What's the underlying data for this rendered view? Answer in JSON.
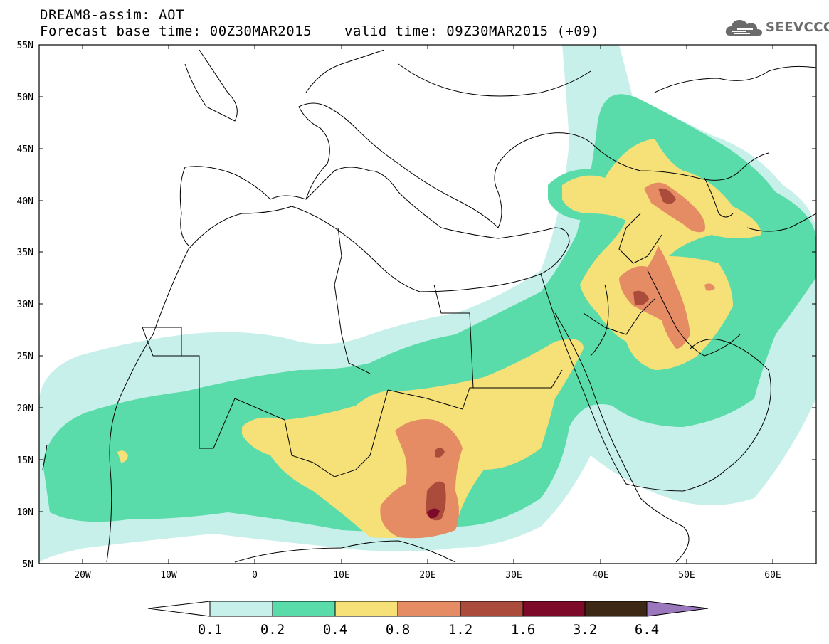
{
  "header": {
    "title": "DREAM8-assim: AOT",
    "forecast_base": "Forecast base time: 00Z30MAR2015",
    "valid_time": "valid time: 09Z30MAR2015 (+09)"
  },
  "logo": {
    "text": "SEEVCCC",
    "icon": "cloud-icon"
  },
  "map": {
    "lat_labels": [
      "55N",
      "50N",
      "45N",
      "40N",
      "35N",
      "30N",
      "25N",
      "20N",
      "15N",
      "10N",
      "5N"
    ],
    "lon_labels": [
      "20W",
      "10W",
      "0",
      "10E",
      "20E",
      "30E",
      "40E",
      "50E",
      "60E"
    ]
  },
  "colorbar": {
    "values": [
      "0.1",
      "0.2",
      "0.4",
      "0.8",
      "1.2",
      "1.6",
      "3.2",
      "6.4"
    ],
    "colors": [
      "#ffffff",
      "#c8f0eb",
      "#5adcaa",
      "#f5e178",
      "#e68c64",
      "#aa4b3c",
      "#7d0a28",
      "#3c2814",
      "#9b78be"
    ]
  }
}
